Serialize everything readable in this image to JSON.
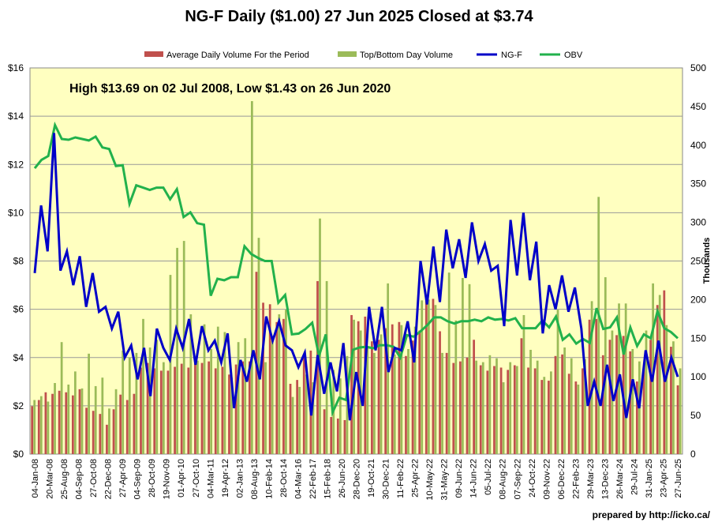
{
  "title": "NG-F Daily ($1.00)  27 Jun 2025 Closed at $3.74",
  "annotation": "High $13.69 on 02 Jul 2008, Low $1.43 on 26 Jun 2020",
  "credit": "prepared by http://icko.ca/",
  "chart_data": {
    "type": "bar+line",
    "legend": [
      "Average Daily Volume For the Period",
      "Top/Bottom Day Volume",
      "NG-F",
      "OBV"
    ],
    "legend_placement": "top-center",
    "colors": {
      "avg_volume": "#c0504d",
      "top_volume": "#9bbb59",
      "price": "#0000c8",
      "obv": "#22b14c",
      "plot_bg": "#ffffc0"
    },
    "y_left": {
      "label": "",
      "ticks": [
        "$0",
        "$2",
        "$4",
        "$6",
        "$8",
        "$10",
        "$12",
        "$14",
        "$16"
      ],
      "range": [
        0,
        16
      ]
    },
    "y_right": {
      "label": "Thousands",
      "ticks": [
        "0",
        "50",
        "100",
        "150",
        "200",
        "250",
        "300",
        "350",
        "400",
        "450",
        "500"
      ],
      "range": [
        0,
        500
      ]
    },
    "x_ticks": [
      "04-Jan-08",
      "20-Mar-08",
      "25-Aug-08",
      "04-Sep-08",
      "27-Oct-08",
      "22-Dec-08",
      "27-Apr-09",
      "04-Sep-09",
      "28-Oct-09",
      "19-Nov-09",
      "01-Apr-10",
      "27-Oct-10",
      "04-Mar-11",
      "19-Apr-12",
      "02-Jan-13",
      "08-Aug-13",
      "10-Feb-14",
      "28-Oct-14",
      "04-Mar-16",
      "22-Feb-17",
      "15-Feb-18",
      "26-Jun-20",
      "28-Dec-20",
      "19-Oct-21",
      "30-Dec-21",
      "11-Feb-22",
      "25-Apr-22",
      "10-May-22",
      "31-May-22",
      "09-Jun-22",
      "14-Jun-22",
      "05-Jul-22",
      "08-Aug-22",
      "07-Sep-22",
      "24-Oct-22",
      "09-Nov-22",
      "06-Dec-22",
      "22-Feb-23",
      "29-Mar-23",
      "13-Dec-23",
      "26-Mar-24",
      "29-Jul-24",
      "31-Jan-25",
      "23-Apr-25",
      "27-Jun-25"
    ],
    "price": [
      7.5,
      10.3,
      8.4,
      13.3,
      7.6,
      8.4,
      7.0,
      8.2,
      6.1,
      7.5,
      5.9,
      6.1,
      5.2,
      5.9,
      4.0,
      4.5,
      3.1,
      4.4,
      2.4,
      5.2,
      4.4,
      3.9,
      5.2,
      4.4,
      5.6,
      3.7,
      5.3,
      4.3,
      4.7,
      3.8,
      5.0,
      1.9,
      3.9,
      3.0,
      4.3,
      3.1,
      5.7,
      4.7,
      5.5,
      4.5,
      4.3,
      3.6,
      4.2,
      1.6,
      4.1,
      2.5,
      3.8,
      2.6,
      4.6,
      1.4,
      3.4,
      2.0,
      6.1,
      4.3,
      6.1,
      3.4,
      4.4,
      4.3,
      5.5,
      3.8,
      8.0,
      6.2,
      8.6,
      6.3,
      9.3,
      7.7,
      8.9,
      7.3,
      9.6,
      8.0,
      8.7,
      7.6,
      7.8,
      5.3,
      9.7,
      7.4,
      10.0,
      7.2,
      8.8,
      5.0,
      7.0,
      6.0,
      7.4,
      5.9,
      6.9,
      5.2,
      2.0,
      3.0,
      2.0,
      3.7,
      2.2,
      3.3,
      1.5,
      3.1,
      1.9,
      4.3,
      3.0,
      4.7,
      3.0,
      4.0,
      3.2
    ],
    "obv": [
      370,
      381,
      386,
      426,
      408,
      407,
      410,
      408,
      406,
      411,
      397,
      395,
      373,
      374,
      324,
      348,
      345,
      342,
      345,
      345,
      330,
      343,
      307,
      313,
      299,
      297,
      205,
      227,
      225,
      229,
      229,
      269,
      259,
      254,
      250,
      250,
      196,
      206,
      155,
      156,
      162,
      170,
      127,
      155,
      54,
      73,
      70,
      135,
      138,
      139,
      137,
      141,
      141,
      139,
      125,
      154,
      152,
      159,
      167,
      177,
      177,
      172,
      169,
      172,
      172,
      174,
      172,
      177,
      174,
      175,
      173,
      176,
      163,
      163,
      163,
      173,
      164,
      178,
      148,
      155,
      143,
      149,
      144,
      189,
      162,
      164,
      177,
      129,
      164,
      140,
      155,
      150,
      185,
      163,
      158,
      150
    ],
    "avg_volume": [
      62,
      70,
      80,
      78,
      82,
      80,
      76,
      84,
      60,
      56,
      52,
      38,
      58,
      77,
      70,
      78,
      112,
      118,
      111,
      108,
      108,
      113,
      117,
      112,
      120,
      118,
      120,
      111,
      113,
      103,
      116,
      120,
      120,
      236,
      196,
      194,
      171,
      175,
      91,
      96,
      128,
      134,
      224,
      58,
      48,
      46,
      44,
      180,
      172,
      178,
      146,
      148,
      163,
      168,
      171,
      127,
      147,
      160,
      200,
      201,
      159,
      131,
      118,
      120,
      125,
      148,
      115,
      108,
      114,
      112,
      109,
      115,
      150,
      112,
      111,
      96,
      95,
      127,
      129,
      104,
      94,
      111,
      174,
      175,
      128,
      148,
      154,
      153,
      133,
      94,
      113,
      148,
      193,
      212,
      139,
      89
    ],
    "top_volume": [
      70,
      75,
      68,
      92,
      145,
      90,
      107,
      85,
      130,
      88,
      99,
      59,
      84,
      134,
      125,
      131,
      175,
      138,
      148,
      119,
      232,
      267,
      276,
      181,
      121,
      168,
      136,
      165,
      158,
      99,
      145,
      150,
      457,
      280,
      119,
      147,
      181,
      187,
      74,
      87,
      103,
      93,
      305,
      224,
      109,
      98,
      127,
      174,
      160,
      140,
      131,
      155,
      221,
      129,
      167,
      136,
      165,
      199,
      200,
      193,
      131,
      235,
      173,
      228,
      220,
      121,
      119,
      128,
      124,
      93,
      119,
      114,
      180,
      135,
      121,
      100,
      107,
      187,
      138,
      124,
      90,
      123,
      198,
      333,
      229,
      160,
      195,
      195,
      136,
      120,
      160,
      221,
      206,
      167,
      146,
      111
    ]
  }
}
